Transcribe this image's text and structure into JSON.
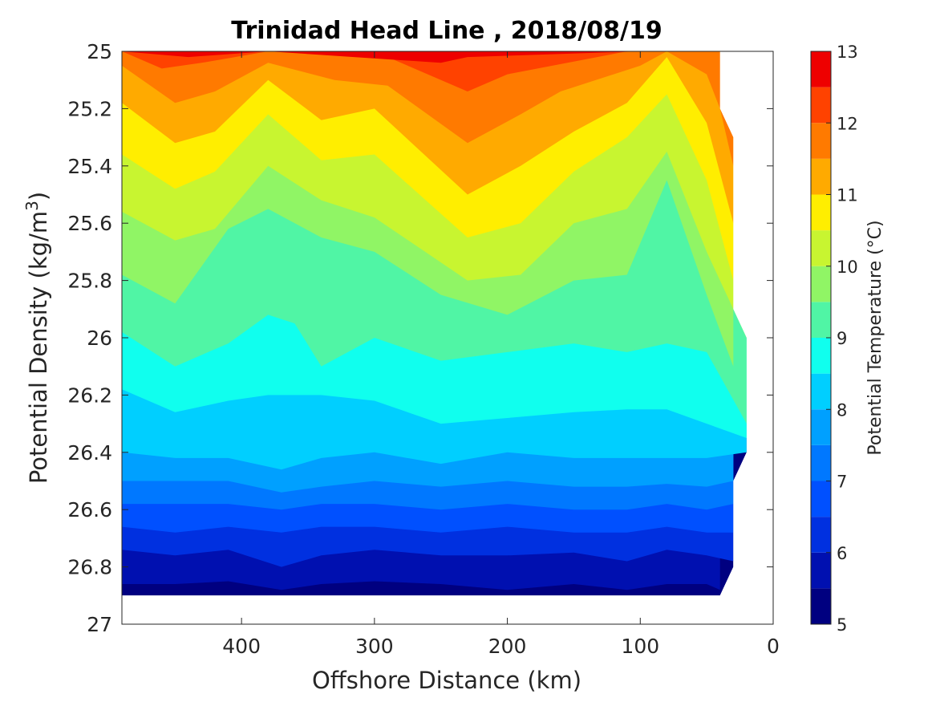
{
  "chart_data": {
    "type": "contour",
    "title": "Trinidad Head Line , 2018/08/19",
    "xlabel": "Offshore Distance (km)",
    "ylabel_main": "Potential Density (kg/m",
    "ylabel_sup": "3",
    "ylabel_end": ")",
    "colorbar_label": "Potential Temperature (°C)",
    "xlim": [
      490,
      0
    ],
    "ylim": [
      25,
      27
    ],
    "x_reversed": true,
    "y_reversed": true,
    "x_ticks": [
      400,
      300,
      200,
      100,
      0
    ],
    "y_ticks": [
      25,
      25.2,
      25.4,
      25.6,
      25.8,
      26,
      26.2,
      26.4,
      26.6,
      26.8,
      27
    ],
    "y_tick_labels": [
      "25",
      "25.2",
      "25.4",
      "25.6",
      "25.8",
      "26",
      "26.2",
      "26.4",
      "26.6",
      "26.8",
      "27"
    ],
    "colorbar_ticks": [
      5,
      6,
      7,
      8,
      9,
      10,
      11,
      12,
      13
    ],
    "colorbar_levels": [
      5,
      5.5,
      6,
      6.5,
      7,
      7.5,
      8,
      8.5,
      9,
      9.5,
      10,
      10.5,
      11,
      11.5,
      12,
      12.5,
      13
    ],
    "colormap": [
      "#000080",
      "#0010b0",
      "#0030e0",
      "#0050ff",
      "#0078ff",
      "#00a0ff",
      "#00cfff",
      "#10ffee",
      "#50f5a5",
      "#90f565",
      "#c8f530",
      "#ffee00",
      "#ffaa00",
      "#ff7a00",
      "#ff4200",
      "#ee0000",
      "#a80000"
    ],
    "data_extent": {
      "x_outer": 490,
      "density_bottom": 26.9,
      "inshore_edge": [
        [
          25.0,
          40
        ],
        [
          25.2,
          40
        ],
        [
          25.3,
          30
        ],
        [
          25.9,
          30
        ],
        [
          26.0,
          20
        ],
        [
          26.4,
          20
        ],
        [
          26.5,
          30
        ],
        [
          26.8,
          30
        ],
        [
          26.9,
          40
        ]
      ]
    },
    "isotherms": [
      {
        "level": 12.5,
        "points": [
          [
            490,
            25.0
          ],
          [
            440,
            25.02
          ],
          [
            380,
            25.0
          ],
          [
            250,
            25.04
          ],
          [
            230,
            25.02
          ],
          [
            100,
            25.0
          ]
        ]
      },
      {
        "level": 12.0,
        "points": [
          [
            490,
            25.0
          ],
          [
            460,
            25.06
          ],
          [
            430,
            25.04
          ],
          [
            380,
            25.0
          ],
          [
            290,
            25.02
          ],
          [
            230,
            25.14
          ],
          [
            200,
            25.08
          ],
          [
            110,
            25.0
          ],
          [
            80,
            25.0
          ],
          [
            60,
            25.0
          ]
        ]
      },
      {
        "level": 11.5,
        "points": [
          [
            490,
            25.05
          ],
          [
            450,
            25.18
          ],
          [
            420,
            25.14
          ],
          [
            380,
            25.04
          ],
          [
            330,
            25.1
          ],
          [
            290,
            25.12
          ],
          [
            230,
            25.32
          ],
          [
            190,
            25.22
          ],
          [
            160,
            25.14
          ],
          [
            100,
            25.05
          ],
          [
            80,
            25.0
          ],
          [
            50,
            25.08
          ],
          [
            40,
            25.2
          ],
          [
            30,
            25.4
          ]
        ]
      },
      {
        "level": 11.0,
        "points": [
          [
            490,
            25.18
          ],
          [
            450,
            25.32
          ],
          [
            420,
            25.28
          ],
          [
            380,
            25.1
          ],
          [
            340,
            25.24
          ],
          [
            300,
            25.2
          ],
          [
            230,
            25.5
          ],
          [
            190,
            25.4
          ],
          [
            150,
            25.28
          ],
          [
            110,
            25.18
          ],
          [
            80,
            25.02
          ],
          [
            50,
            25.25
          ],
          [
            30,
            25.6
          ]
        ]
      },
      {
        "level": 10.5,
        "points": [
          [
            490,
            25.36
          ],
          [
            450,
            25.48
          ],
          [
            420,
            25.42
          ],
          [
            380,
            25.22
          ],
          [
            340,
            25.38
          ],
          [
            300,
            25.36
          ],
          [
            230,
            25.65
          ],
          [
            190,
            25.6
          ],
          [
            150,
            25.42
          ],
          [
            110,
            25.3
          ],
          [
            80,
            25.15
          ],
          [
            50,
            25.45
          ],
          [
            30,
            25.8
          ]
        ]
      },
      {
        "level": 10.0,
        "points": [
          [
            490,
            25.56
          ],
          [
            450,
            25.66
          ],
          [
            420,
            25.62
          ],
          [
            380,
            25.4
          ],
          [
            340,
            25.52
          ],
          [
            300,
            25.58
          ],
          [
            230,
            25.8
          ],
          [
            190,
            25.78
          ],
          [
            150,
            25.6
          ],
          [
            110,
            25.55
          ],
          [
            80,
            25.35
          ],
          [
            50,
            25.7
          ],
          [
            30,
            25.9
          ],
          [
            20,
            26.0
          ]
        ]
      },
      {
        "level": 9.5,
        "points": [
          [
            490,
            25.78
          ],
          [
            450,
            25.88
          ],
          [
            410,
            25.62
          ],
          [
            380,
            25.55
          ],
          [
            340,
            25.65
          ],
          [
            300,
            25.7
          ],
          [
            250,
            25.85
          ],
          [
            200,
            25.92
          ],
          [
            150,
            25.8
          ],
          [
            110,
            25.78
          ],
          [
            80,
            25.45
          ],
          [
            50,
            25.85
          ],
          [
            30,
            26.1
          ]
        ]
      },
      {
        "level": 9.0,
        "points": [
          [
            490,
            25.98
          ],
          [
            450,
            26.1
          ],
          [
            410,
            26.02
          ],
          [
            380,
            25.92
          ],
          [
            360,
            25.95
          ],
          [
            340,
            26.1
          ],
          [
            300,
            26.0
          ],
          [
            250,
            26.08
          ],
          [
            200,
            26.05
          ],
          [
            150,
            26.02
          ],
          [
            110,
            26.05
          ],
          [
            80,
            26.02
          ],
          [
            50,
            26.05
          ],
          [
            20,
            26.3
          ]
        ]
      },
      {
        "level": 8.5,
        "points": [
          [
            490,
            26.18
          ],
          [
            450,
            26.26
          ],
          [
            410,
            26.22
          ],
          [
            380,
            26.2
          ],
          [
            340,
            26.2
          ],
          [
            300,
            26.22
          ],
          [
            250,
            26.3
          ],
          [
            200,
            26.28
          ],
          [
            150,
            26.26
          ],
          [
            110,
            26.25
          ],
          [
            80,
            26.25
          ],
          [
            50,
            26.3
          ],
          [
            20,
            26.35
          ]
        ]
      },
      {
        "level": 8.0,
        "points": [
          [
            490,
            26.4
          ],
          [
            450,
            26.42
          ],
          [
            410,
            26.42
          ],
          [
            370,
            26.46
          ],
          [
            340,
            26.42
          ],
          [
            300,
            26.4
          ],
          [
            250,
            26.44
          ],
          [
            200,
            26.4
          ],
          [
            150,
            26.42
          ],
          [
            110,
            26.42
          ],
          [
            80,
            26.42
          ],
          [
            50,
            26.42
          ],
          [
            20,
            26.4
          ]
        ]
      },
      {
        "level": 7.5,
        "points": [
          [
            490,
            26.5
          ],
          [
            450,
            26.5
          ],
          [
            410,
            26.5
          ],
          [
            370,
            26.54
          ],
          [
            340,
            26.52
          ],
          [
            300,
            26.5
          ],
          [
            250,
            26.52
          ],
          [
            200,
            26.5
          ],
          [
            150,
            26.52
          ],
          [
            110,
            26.52
          ],
          [
            80,
            26.51
          ],
          [
            50,
            26.52
          ],
          [
            30,
            26.5
          ]
        ]
      },
      {
        "level": 7.0,
        "points": [
          [
            490,
            26.58
          ],
          [
            450,
            26.58
          ],
          [
            410,
            26.58
          ],
          [
            370,
            26.6
          ],
          [
            340,
            26.58
          ],
          [
            300,
            26.58
          ],
          [
            250,
            26.6
          ],
          [
            200,
            26.58
          ],
          [
            150,
            26.6
          ],
          [
            110,
            26.6
          ],
          [
            80,
            26.58
          ],
          [
            50,
            26.6
          ],
          [
            30,
            26.58
          ]
        ]
      },
      {
        "level": 6.5,
        "points": [
          [
            490,
            26.66
          ],
          [
            450,
            26.68
          ],
          [
            410,
            26.66
          ],
          [
            370,
            26.68
          ],
          [
            340,
            26.66
          ],
          [
            300,
            26.66
          ],
          [
            250,
            26.68
          ],
          [
            200,
            26.66
          ],
          [
            150,
            26.68
          ],
          [
            110,
            26.68
          ],
          [
            80,
            26.66
          ],
          [
            50,
            26.68
          ],
          [
            30,
            26.68
          ]
        ]
      },
      {
        "level": 6.0,
        "points": [
          [
            490,
            26.74
          ],
          [
            450,
            26.76
          ],
          [
            410,
            26.74
          ],
          [
            370,
            26.8
          ],
          [
            340,
            26.76
          ],
          [
            300,
            26.74
          ],
          [
            250,
            26.76
          ],
          [
            200,
            26.76
          ],
          [
            150,
            26.75
          ],
          [
            110,
            26.78
          ],
          [
            80,
            26.74
          ],
          [
            50,
            26.76
          ],
          [
            30,
            26.78
          ]
        ]
      },
      {
        "level": 5.5,
        "points": [
          [
            490,
            26.86
          ],
          [
            450,
            26.86
          ],
          [
            410,
            26.85
          ],
          [
            370,
            26.88
          ],
          [
            340,
            26.86
          ],
          [
            300,
            26.85
          ],
          [
            250,
            26.86
          ],
          [
            200,
            26.88
          ],
          [
            150,
            26.86
          ],
          [
            110,
            26.88
          ],
          [
            80,
            26.86
          ],
          [
            50,
            26.86
          ],
          [
            40,
            26.88
          ]
        ]
      }
    ]
  }
}
